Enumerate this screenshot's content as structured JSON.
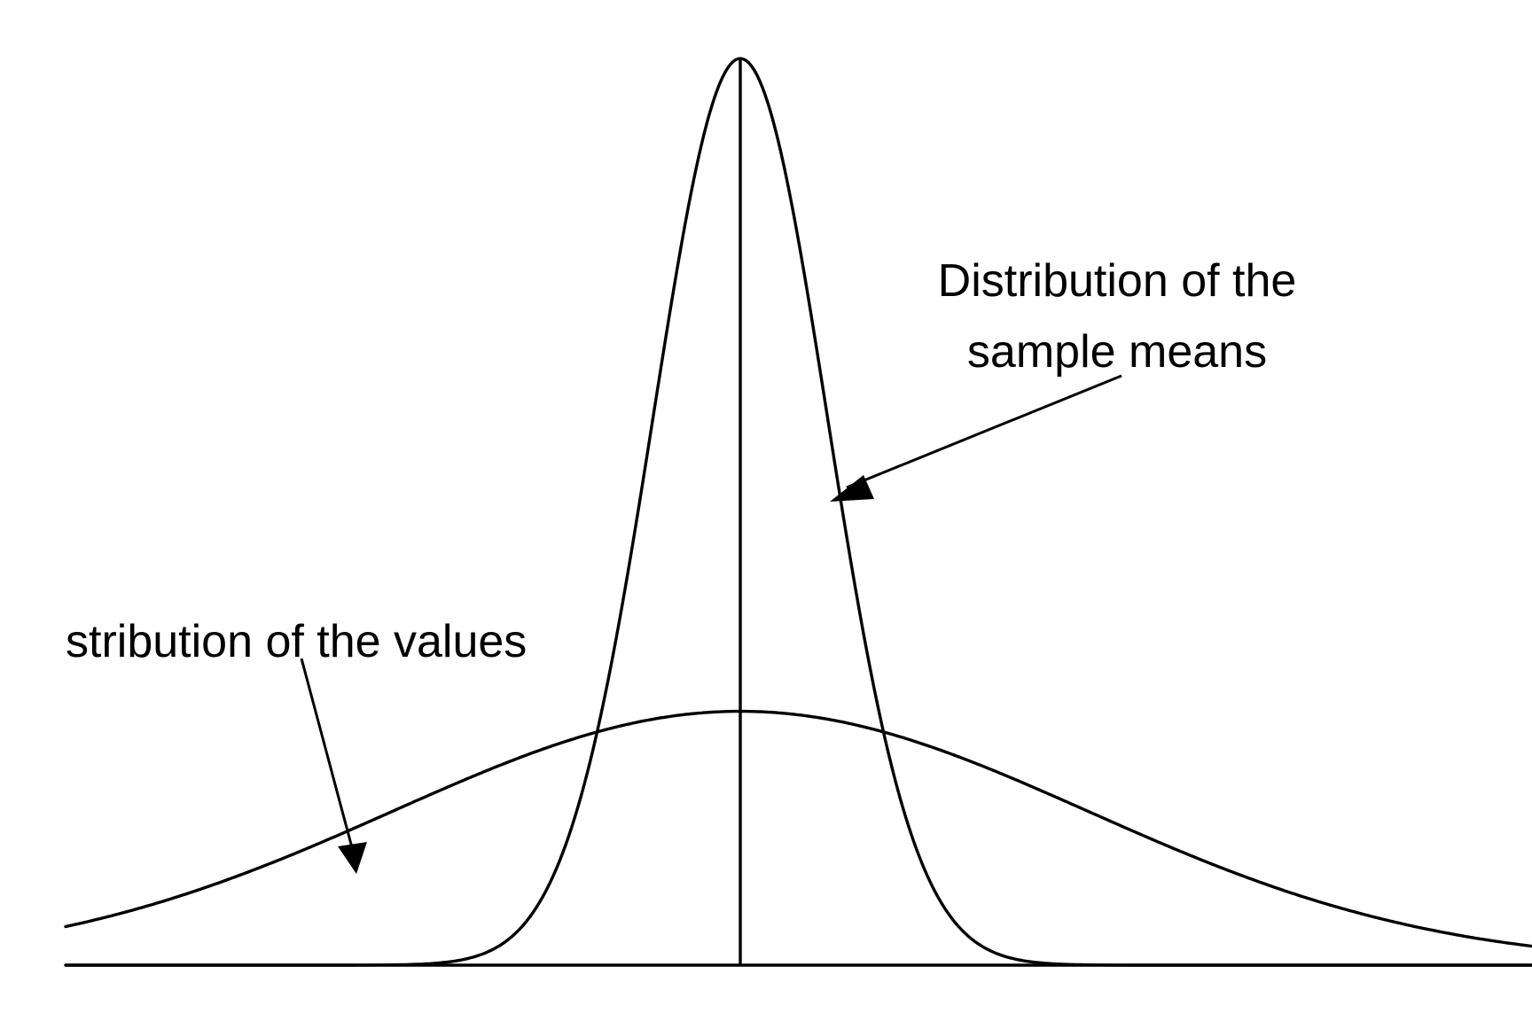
{
  "labels": {
    "sample_means_line1": "Distribution of the",
    "sample_means_line2": "sample means",
    "values": "stribution of the values"
  },
  "colors": {
    "ink": "#000000",
    "background": "#ffffff"
  },
  "chart_data": {
    "type": "line",
    "series": [
      {
        "relative_spread": 4,
        "relative_peak": 0.28
      },
      {
        "relative_spread": 1,
        "relative_peak": 1.0
      }
    ]
  }
}
